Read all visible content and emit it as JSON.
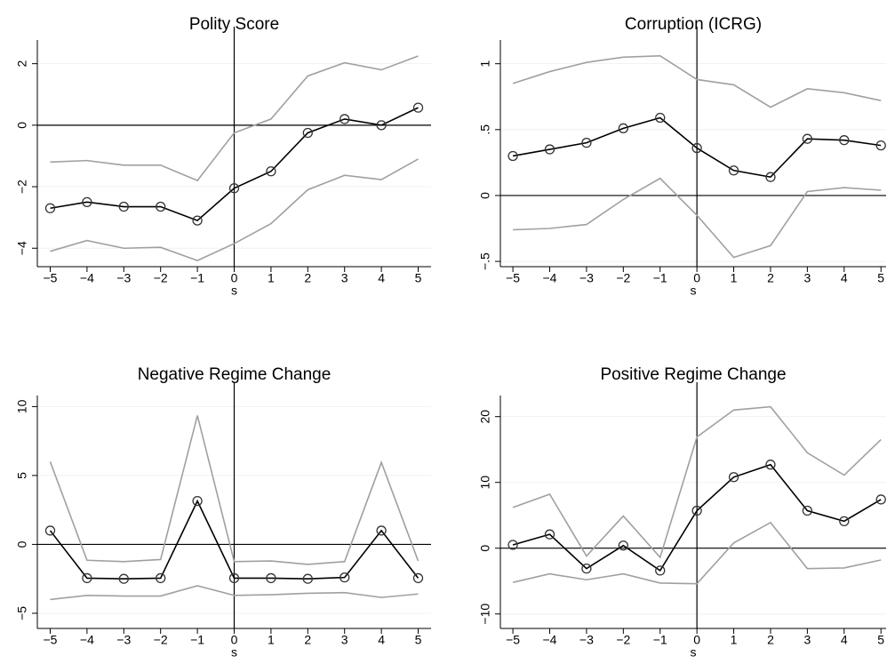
{
  "chart_data": [
    {
      "type": "line",
      "title": "Polity Score",
      "xlabel": "s",
      "x": [
        -5,
        -4,
        -3,
        -2,
        -1,
        0,
        1,
        2,
        3,
        4,
        5
      ],
      "series": [
        {
          "color": "#000000",
          "marker": "circle",
          "values": [
            -2.7,
            -2.5,
            -2.65,
            -2.65,
            -3.1,
            -2.05,
            -1.5,
            -0.25,
            0.2,
            0,
            0.57
          ]
        },
        {
          "color": "#a0a0a0",
          "marker": "none",
          "values": [
            -1.2,
            -1.15,
            -1.3,
            -1.3,
            -1.8,
            -0.25,
            0.2,
            1.6,
            2.03,
            1.8,
            2.25
          ]
        },
        {
          "color": "#a0a0a0",
          "marker": "none",
          "values": [
            -4.1,
            -3.75,
            -4.0,
            -3.97,
            -4.4,
            -3.85,
            -3.2,
            -2.1,
            -1.63,
            -1.77,
            -1.1
          ]
        }
      ],
      "xlim": [
        -5.35,
        5.35
      ],
      "ylim": [
        -4.6,
        2.77
      ],
      "xticks": [
        {
          "value": -5,
          "label": "−5"
        },
        {
          "value": -4,
          "label": "−4"
        },
        {
          "value": -3,
          "label": "−3"
        },
        {
          "value": -2,
          "label": "−2"
        },
        {
          "value": -1,
          "label": "−1"
        },
        0,
        1,
        2,
        3,
        4,
        5
      ],
      "yticks": [
        {
          "value": -4,
          "label": "−4"
        },
        {
          "value": -2,
          "label": "−2"
        },
        0,
        2
      ],
      "xline": 0,
      "yline": 0,
      "grid": true
    },
    {
      "type": "line",
      "title": "Corruption (ICRG)",
      "xlabel": "s",
      "x": [
        -5,
        -4,
        -3,
        -2,
        -1,
        0,
        1,
        2,
        3,
        4,
        5
      ],
      "series": [
        {
          "color": "#000000",
          "marker": "circle",
          "values": [
            0.3,
            0.35,
            0.4,
            0.51,
            0.59,
            0.36,
            0.19,
            0.14,
            0.43,
            0.42,
            0.38
          ]
        },
        {
          "color": "#a0a0a0",
          "marker": "none",
          "values": [
            0.85,
            0.94,
            1.01,
            1.05,
            1.06,
            0.88,
            0.84,
            0.67,
            0.81,
            0.78,
            0.72
          ]
        },
        {
          "color": "#a0a0a0",
          "marker": "none",
          "values": [
            -0.26,
            -0.25,
            -0.22,
            -0.03,
            0.13,
            -0.15,
            -0.47,
            -0.38,
            0.03,
            0.06,
            0.04
          ]
        }
      ],
      "xlim": [
        -5.34,
        5.14
      ],
      "ylim": [
        -0.54,
        1.18
      ],
      "xticks": [
        {
          "value": -5,
          "label": "−5"
        },
        {
          "value": -4,
          "label": "−4"
        },
        {
          "value": -3,
          "label": "−3"
        },
        {
          "value": -2,
          "label": "−2"
        },
        {
          "value": -1,
          "label": "−1"
        },
        0,
        1,
        2,
        3,
        4,
        5
      ],
      "yticks": [
        {
          "value": -0.5,
          "label": "−.5"
        },
        0,
        {
          "value": 0.5,
          "label": ".5"
        },
        1
      ],
      "xline": 0,
      "yline": 0,
      "grid": true
    },
    {
      "type": "line",
      "title": "Negative Regime Change",
      "xlabel": "s",
      "x": [
        -5,
        -4,
        -3,
        -2,
        -1,
        0,
        1,
        2,
        3,
        4,
        5
      ],
      "series": [
        {
          "color": "#000000",
          "marker": "circle",
          "values": [
            1.0,
            -2.45,
            -2.5,
            -2.45,
            3.15,
            -2.45,
            -2.45,
            -2.5,
            -2.4,
            1.0,
            -2.45
          ]
        },
        {
          "color": "#a0a0a0",
          "marker": "none",
          "values": [
            6.0,
            -1.15,
            -1.25,
            -1.1,
            9.35,
            -1.25,
            -1.2,
            -1.45,
            -1.25,
            5.95,
            -1.2
          ]
        },
        {
          "color": "#a0a0a0",
          "marker": "none",
          "values": [
            -4.0,
            -3.7,
            -3.75,
            -3.75,
            -3.0,
            -3.7,
            -3.65,
            -3.55,
            -3.5,
            -3.85,
            -3.6
          ]
        }
      ],
      "xlim": [
        -5.35,
        5.35
      ],
      "ylim": [
        -6.1,
        10.8
      ],
      "xticks": [
        {
          "value": -5,
          "label": "−5"
        },
        {
          "value": -4,
          "label": "−4"
        },
        {
          "value": -3,
          "label": "−3"
        },
        {
          "value": -2,
          "label": "−2"
        },
        {
          "value": -1,
          "label": "−1"
        },
        0,
        1,
        2,
        3,
        4,
        5
      ],
      "yticks": [
        {
          "value": -5,
          "label": "−5"
        },
        0,
        5,
        10
      ],
      "xline": 0,
      "yline": 0,
      "grid": true
    },
    {
      "type": "line",
      "title": "Positive Regime Change",
      "xlabel": "s",
      "x": [
        -5,
        -4,
        -3,
        -2,
        -1,
        0,
        1,
        2,
        3,
        4,
        5
      ],
      "series": [
        {
          "color": "#000000",
          "marker": "circle",
          "values": [
            0.5,
            2.1,
            -3.1,
            0.4,
            -3.4,
            5.7,
            10.8,
            12.7,
            5.7,
            4.1,
            7.4
          ]
        },
        {
          "color": "#a0a0a0",
          "marker": "none",
          "values": [
            6.2,
            8.2,
            -1.2,
            4.9,
            -1.4,
            16.9,
            21.0,
            21.5,
            14.5,
            11.1,
            16.5
          ]
        },
        {
          "color": "#a0a0a0",
          "marker": "none",
          "values": [
            -5.2,
            -3.9,
            -4.8,
            -3.9,
            -5.3,
            -5.4,
            0.8,
            3.9,
            -3.1,
            -3.0,
            -1.8
          ]
        }
      ],
      "xlim": [
        -5.34,
        5.14
      ],
      "ylim": [
        -12.2,
        23.2
      ],
      "xticks": [
        {
          "value": -5,
          "label": "−5"
        },
        {
          "value": -4,
          "label": "−4"
        },
        {
          "value": -3,
          "label": "−3"
        },
        {
          "value": -2,
          "label": "−2"
        },
        {
          "value": -1,
          "label": "−1"
        },
        0,
        1,
        2,
        3,
        4,
        5
      ],
      "yticks": [
        {
          "value": -10,
          "label": "−10"
        },
        0,
        10,
        20
      ],
      "xline": 0,
      "yline": 0,
      "grid": true
    }
  ]
}
